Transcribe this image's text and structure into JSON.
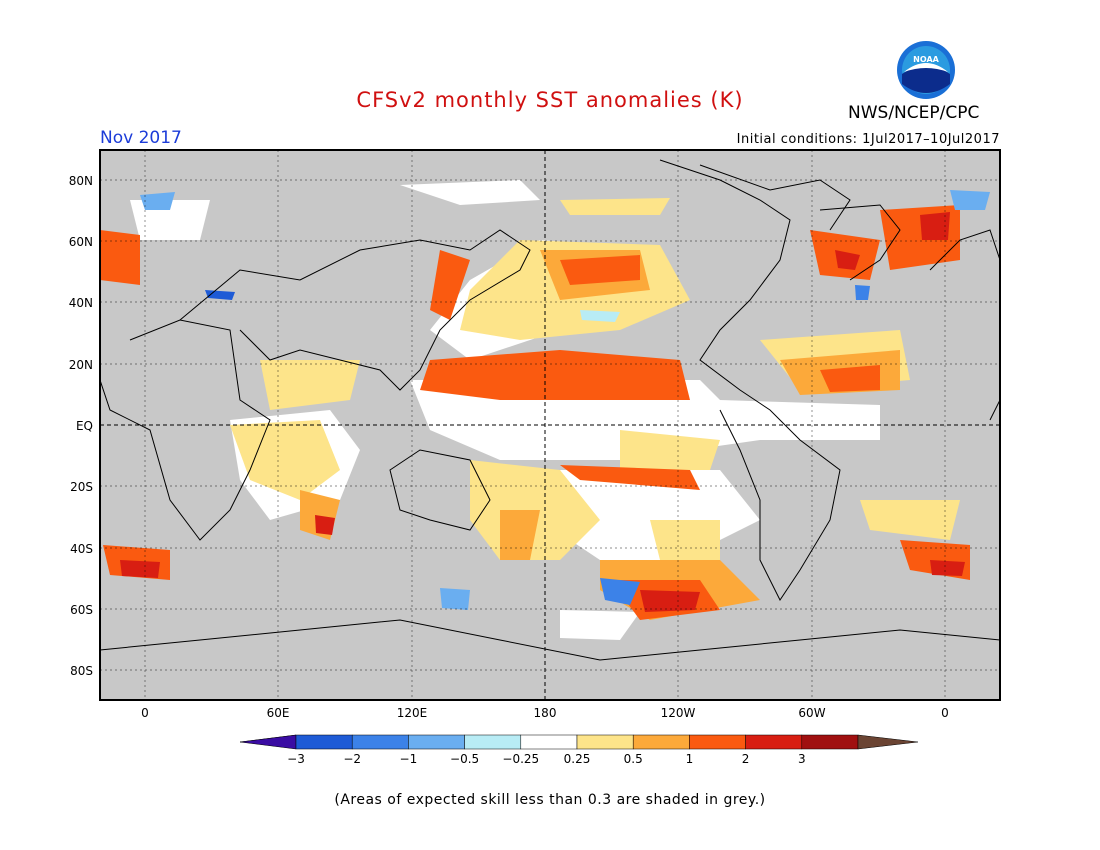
{
  "header": {
    "title": "CFSv2 monthly SST anomalies (K)",
    "month": "Nov 2017",
    "initial_conditions": "Initial conditions: 1Jul2017–10Jul2017",
    "agency": "NWS/NCEP/CPC",
    "logo_text": "NOAA"
  },
  "map": {
    "lat_labels": [
      "80N",
      "60N",
      "40N",
      "20N",
      "EQ",
      "20S",
      "40S",
      "60S",
      "80S"
    ],
    "lon_labels": [
      "0",
      "60E",
      "120E",
      "180",
      "120W",
      "60W",
      "0"
    ],
    "land_color": "#c8c8c8",
    "grid_style": "dashed"
  },
  "colorbar": {
    "ticks": [
      "−3",
      "−2",
      "−1",
      "−0.5",
      "−0.25",
      "0.25",
      "0.5",
      "1",
      "2",
      "3"
    ],
    "colors": [
      "#3a0ca3",
      "#1e5bd6",
      "#3c82e8",
      "#6aaef0",
      "#b8ecf5",
      "#ffffff",
      "#fde48a",
      "#fca93a",
      "#fa5a10",
      "#d81e12",
      "#a01010",
      "#6b4433"
    ]
  },
  "footnote": "(Areas of expected skill less than 0.3 are shaded in grey.)"
}
